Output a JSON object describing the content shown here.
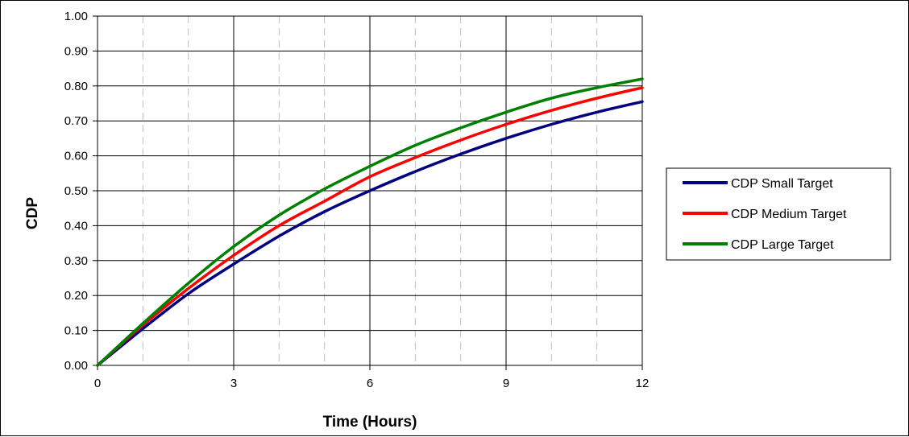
{
  "chart_data": {
    "type": "line",
    "xlabel": "Time (Hours)",
    "ylabel": "CDP",
    "xlim": [
      0,
      12
    ],
    "ylim": [
      0,
      1.0
    ],
    "x_ticks": [
      "0",
      "3",
      "6",
      "9",
      "12"
    ],
    "y_ticks": [
      "0.00",
      "0.10",
      "0.20",
      "0.30",
      "0.40",
      "0.50",
      "0.60",
      "0.70",
      "0.80",
      "0.90",
      "1.00"
    ],
    "grid": {
      "major_x": true,
      "major_y": true,
      "minor_x": true
    },
    "legend_position": "right",
    "x": [
      0,
      1,
      2,
      3,
      4,
      5,
      6,
      7,
      8,
      9,
      10,
      11,
      12
    ],
    "series": [
      {
        "name": "CDP Small Target",
        "color": "#000080",
        "values": [
          0.0,
          0.105,
          0.205,
          0.29,
          0.37,
          0.44,
          0.5,
          0.555,
          0.605,
          0.65,
          0.69,
          0.725,
          0.755
        ]
      },
      {
        "name": "CDP Medium Target",
        "color": "#ff0000",
        "values": [
          0.0,
          0.115,
          0.22,
          0.315,
          0.4,
          0.47,
          0.54,
          0.595,
          0.645,
          0.69,
          0.73,
          0.765,
          0.795
        ]
      },
      {
        "name": "CDP Large Target",
        "color": "#008000",
        "values": [
          0.0,
          0.12,
          0.235,
          0.34,
          0.43,
          0.505,
          0.57,
          0.63,
          0.68,
          0.725,
          0.765,
          0.795,
          0.82
        ]
      }
    ]
  }
}
